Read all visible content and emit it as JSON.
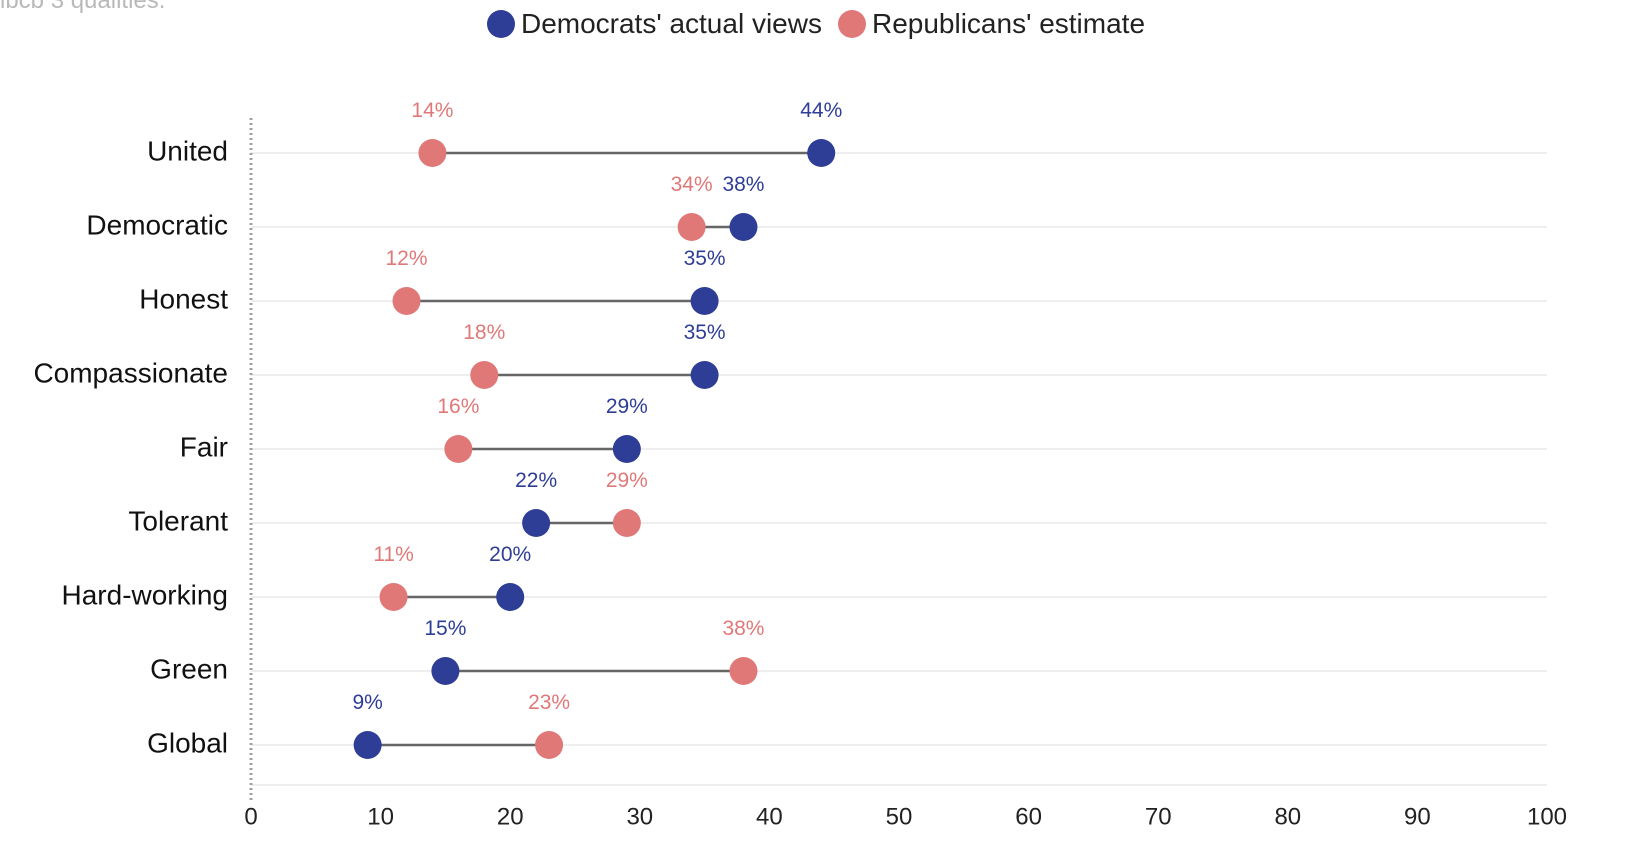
{
  "subtitle_fragment": "ibcb 3 qualities.",
  "colors": {
    "democrats": "#2e3d96",
    "republicans": "#e07878",
    "connector": "#666666",
    "grid": "#e8e8e8",
    "axis": "#a0a0a0"
  },
  "chart_data": {
    "type": "dumbbell",
    "title": "",
    "xlabel": "",
    "ylabel": "",
    "xlim": [
      0,
      100
    ],
    "xticks": [
      0,
      10,
      20,
      30,
      40,
      50,
      60,
      70,
      80,
      90,
      100
    ],
    "grid": true,
    "legend_position": "top-center",
    "categories": [
      "United",
      "Democratic",
      "Honest",
      "Compassionate",
      "Fair",
      "Tolerant",
      "Hard-working",
      "Green",
      "Global"
    ],
    "series": [
      {
        "name": "Democrats' actual views",
        "values": [
          44,
          38,
          35,
          35,
          29,
          22,
          20,
          15,
          9
        ],
        "labels": [
          "44%",
          "38%",
          "35%",
          "35%",
          "29%",
          "22%",
          "20%",
          "15%",
          "9%"
        ]
      },
      {
        "name": "Republicans' estimate",
        "values": [
          14,
          34,
          12,
          18,
          16,
          29,
          11,
          38,
          23
        ],
        "labels": [
          "14%",
          "34%",
          "12%",
          "18%",
          "16%",
          "29%",
          "11%",
          "38%",
          "23%"
        ]
      }
    ]
  }
}
